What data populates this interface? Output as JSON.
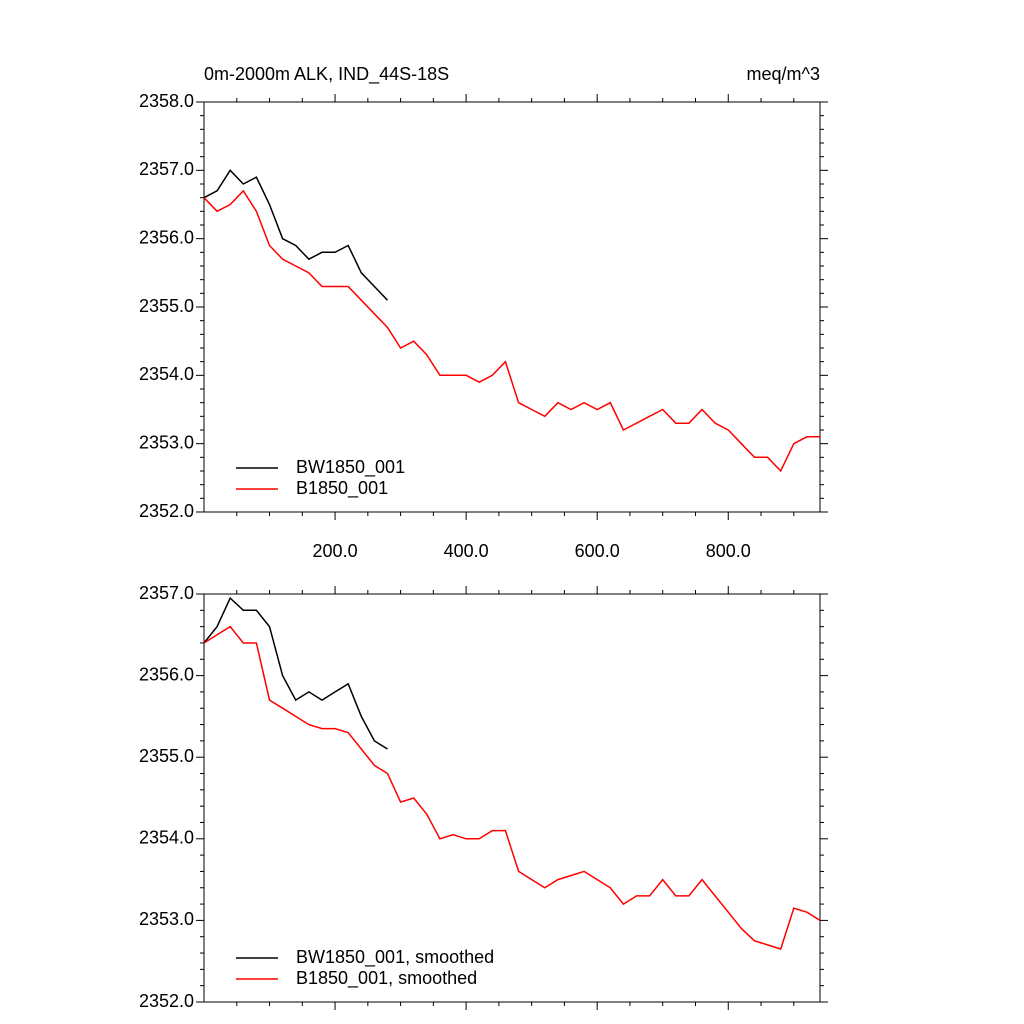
{
  "chart_data": [
    {
      "type": "line",
      "title": "0m-2000m ALK, IND_44S-18S",
      "right_title": "meq/m^3",
      "x": [
        0,
        20,
        40,
        60,
        80,
        100,
        120,
        140,
        160,
        180,
        200,
        220,
        240,
        260,
        280,
        300,
        320,
        340,
        360,
        380,
        400,
        420,
        440,
        460,
        480,
        500,
        520,
        540,
        560,
        580,
        600,
        620,
        640,
        660,
        680,
        700,
        720,
        740,
        760,
        780,
        800,
        820,
        840,
        860,
        880,
        900,
        920,
        940
      ],
      "xlim": [
        0,
        940
      ],
      "xticks": [
        {
          "value": 200,
          "label": "200.0"
        },
        {
          "value": 400,
          "label": "400.0"
        },
        {
          "value": 600,
          "label": "600.0"
        },
        {
          "value": 800,
          "label": "800.0"
        }
      ],
      "ylim": [
        2352,
        2358
      ],
      "yticks": [
        {
          "value": 2352,
          "label": "2352.0"
        },
        {
          "value": 2353,
          "label": "2353.0"
        },
        {
          "value": 2354,
          "label": "2354.0"
        },
        {
          "value": 2355,
          "label": "2355.0"
        },
        {
          "value": 2356,
          "label": "2356.0"
        },
        {
          "value": 2357,
          "label": "2357.0"
        },
        {
          "value": 2358,
          "label": "2358.0"
        }
      ],
      "series": [
        {
          "name": "BW1850_001",
          "color": "#000000",
          "values": [
            2356.6,
            2356.7,
            2357.0,
            2356.8,
            2356.9,
            2356.5,
            2356.0,
            2355.9,
            2355.7,
            2355.8,
            2355.8,
            2355.9,
            2355.5,
            2355.3,
            2355.1,
            null,
            null,
            null,
            null,
            null,
            null,
            null,
            null,
            null,
            null,
            null,
            null,
            null,
            null,
            null,
            null,
            null,
            null,
            null,
            null,
            null,
            null,
            null,
            null,
            null,
            null,
            null,
            null,
            null,
            null,
            null,
            null,
            null
          ]
        },
        {
          "name": "B1850_001",
          "color": "#ff0000",
          "values": [
            2356.6,
            2356.4,
            2356.5,
            2356.7,
            2356.4,
            2355.9,
            2355.7,
            2355.6,
            2355.5,
            2355.3,
            2355.3,
            2355.3,
            2355.1,
            2354.9,
            2354.7,
            2354.4,
            2354.5,
            2354.3,
            2354.0,
            2354.0,
            2354.0,
            2353.9,
            2354.0,
            2354.2,
            2353.6,
            2353.5,
            2353.4,
            2353.6,
            2353.5,
            2353.6,
            2353.5,
            2353.6,
            2353.2,
            2353.3,
            2353.4,
            2353.5,
            2353.3,
            2353.3,
            2353.5,
            2353.3,
            2353.2,
            2353.0,
            2352.8,
            2352.8,
            2352.6,
            2353.0,
            2353.1,
            2353.1
          ]
        }
      ]
    },
    {
      "type": "line",
      "x": [
        0,
        20,
        40,
        60,
        80,
        100,
        120,
        140,
        160,
        180,
        200,
        220,
        240,
        260,
        280,
        300,
        320,
        340,
        360,
        380,
        400,
        420,
        440,
        460,
        480,
        500,
        520,
        540,
        560,
        580,
        600,
        620,
        640,
        660,
        680,
        700,
        720,
        740,
        760,
        780,
        800,
        820,
        840,
        860,
        880,
        900,
        920,
        940
      ],
      "xlim": [
        0,
        940
      ],
      "xticks": [
        200,
        400,
        600,
        800
      ],
      "ylim": [
        2352,
        2357
      ],
      "yticks": [
        {
          "value": 2352,
          "label": "2352.0"
        },
        {
          "value": 2353,
          "label": "2353.0"
        },
        {
          "value": 2354,
          "label": "2354.0"
        },
        {
          "value": 2355,
          "label": "2355.0"
        },
        {
          "value": 2356,
          "label": "2356.0"
        },
        {
          "value": 2357,
          "label": "2357.0"
        }
      ],
      "series": [
        {
          "name": "BW1850_001, smoothed",
          "color": "#000000",
          "values": [
            2356.4,
            2356.6,
            2356.95,
            2356.8,
            2356.8,
            2356.6,
            2356.0,
            2355.7,
            2355.8,
            2355.7,
            2355.8,
            2355.9,
            2355.5,
            2355.2,
            2355.1,
            null,
            null,
            null,
            null,
            null,
            null,
            null,
            null,
            null,
            null,
            null,
            null,
            null,
            null,
            null,
            null,
            null,
            null,
            null,
            null,
            null,
            null,
            null,
            null,
            null,
            null,
            null,
            null,
            null,
            null,
            null,
            null,
            null
          ]
        },
        {
          "name": "B1850_001, smoothed",
          "color": "#ff0000",
          "values": [
            2356.4,
            2356.5,
            2356.6,
            2356.4,
            2356.4,
            2355.7,
            2355.6,
            2355.5,
            2355.4,
            2355.35,
            2355.35,
            2355.3,
            2355.1,
            2354.9,
            2354.8,
            2354.45,
            2354.5,
            2354.3,
            2354.0,
            2354.05,
            2354.0,
            2354.0,
            2354.1,
            2354.1,
            2353.6,
            2353.5,
            2353.4,
            2353.5,
            2353.55,
            2353.6,
            2353.5,
            2353.4,
            2353.2,
            2353.3,
            2353.3,
            2353.5,
            2353.3,
            2353.3,
            2353.5,
            2353.3,
            2353.1,
            2352.9,
            2352.75,
            2352.7,
            2352.65,
            2353.15,
            2353.1,
            2353.0
          ]
        }
      ]
    }
  ]
}
